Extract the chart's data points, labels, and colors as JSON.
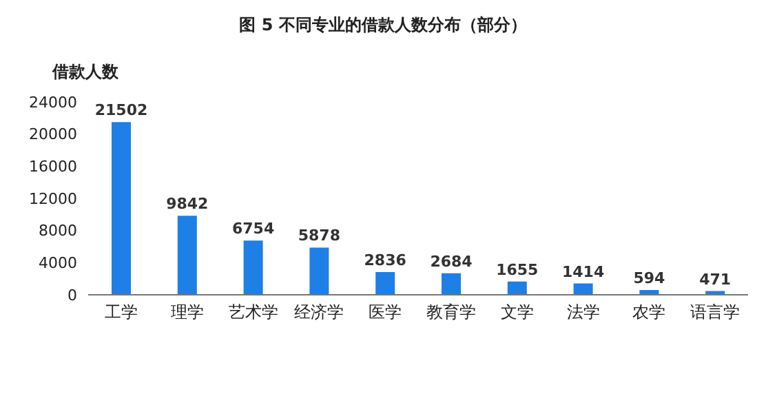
{
  "chart_data": {
    "type": "bar",
    "title": "图 5  不同专业的借款人数分布（部分）",
    "ylabel": "借款人数",
    "categories": [
      "工学",
      "理学",
      "艺术学",
      "经济学",
      "医学",
      "教育学",
      "文学",
      "法学",
      "农学",
      "语言学"
    ],
    "values": [
      21502,
      9842,
      6754,
      5878,
      2836,
      2684,
      1655,
      1414,
      594,
      471
    ],
    "color": "#1e7fe6",
    "ylim": [
      0,
      24000
    ],
    "yticks": [
      0,
      4000,
      8000,
      12000,
      16000,
      20000,
      24000
    ],
    "grid": false,
    "data_labels": true
  }
}
